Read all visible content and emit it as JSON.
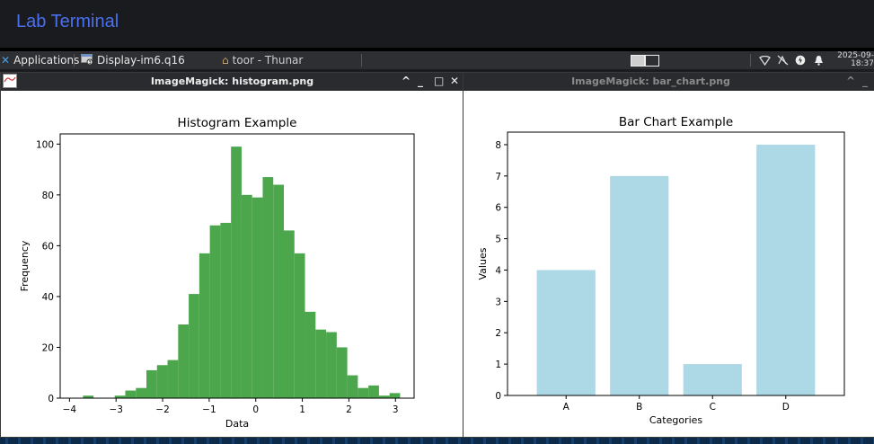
{
  "lab": {
    "title": "Lab Terminal"
  },
  "taskbar": {
    "applications_label": "Applications",
    "app_button_label": "Display-im6.q16",
    "file_manager_label": "toor - Thunar",
    "clock_date": "2025-09-",
    "clock_time": "18:37"
  },
  "window_left": {
    "title": "ImageMagick: histogram.png",
    "controls": {
      "shade": "^",
      "minimize": "_",
      "maximize": "□",
      "close": "✕"
    }
  },
  "window_right": {
    "title": "ImageMagick: bar_chart.png",
    "controls": {
      "shade": "^",
      "minimize": "_"
    }
  },
  "chart_data": [
    {
      "type": "bar",
      "title": "Histogram Example",
      "xlabel": "Data",
      "ylabel": "Frequency",
      "xlim": [
        -4.2,
        3.4
      ],
      "ylim": [
        0,
        104
      ],
      "xticks": [
        -4,
        -3,
        -2,
        -1,
        0,
        1,
        2,
        3
      ],
      "yticks": [
        0,
        20,
        40,
        60,
        80,
        100
      ],
      "color": "#4ca64c",
      "bin_start": -3.71,
      "bin_width": 0.227,
      "values": [
        1,
        0,
        0,
        1,
        3,
        4,
        11,
        13,
        15,
        29,
        41,
        57,
        68,
        69,
        99,
        80,
        79,
        87,
        84,
        66,
        57,
        34,
        27,
        26,
        20,
        9,
        4,
        5,
        1,
        2
      ]
    },
    {
      "type": "bar",
      "title": "Bar Chart Example",
      "xlabel": "Categories",
      "ylabel": "Values",
      "categories": [
        "A",
        "B",
        "C",
        "D"
      ],
      "values": [
        4,
        7,
        1,
        8
      ],
      "ylim": [
        0,
        8.4
      ],
      "yticks": [
        0,
        1,
        2,
        3,
        4,
        5,
        6,
        7,
        8
      ],
      "color": "#add8e6"
    }
  ]
}
